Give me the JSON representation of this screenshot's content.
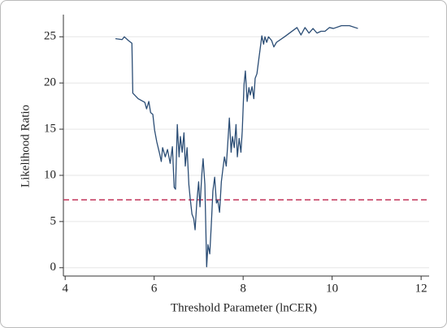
{
  "chart_data": {
    "type": "line",
    "xlabel": "Threshold Parameter (lnCER)",
    "ylabel": "Likelihood Ratio",
    "x": [
      5.13,
      5.28,
      5.33,
      5.42,
      5.5,
      5.52,
      5.64,
      5.79,
      5.83,
      5.88,
      5.92,
      5.97,
      6.01,
      6.06,
      6.12,
      6.16,
      6.19,
      6.25,
      6.3,
      6.36,
      6.41,
      6.45,
      6.48,
      6.52,
      6.56,
      6.59,
      6.63,
      6.67,
      6.7,
      6.74,
      6.78,
      6.81,
      6.85,
      6.89,
      6.92,
      6.96,
      7.0,
      7.03,
      7.07,
      7.1,
      7.14,
      7.18,
      7.21,
      7.25,
      7.29,
      7.32,
      7.36,
      7.4,
      7.43,
      7.47,
      7.51,
      7.54,
      7.58,
      7.62,
      7.65,
      7.69,
      7.73,
      7.76,
      7.8,
      7.84,
      7.87,
      7.91,
      7.95,
      7.98,
      8.02,
      8.05,
      8.09,
      8.13,
      8.16,
      8.2,
      8.24,
      8.27,
      8.31,
      8.35,
      8.38,
      8.42,
      8.46,
      8.49,
      8.53,
      8.57,
      8.64,
      8.69,
      8.75,
      8.93,
      9.21,
      9.3,
      9.39,
      9.48,
      9.57,
      9.66,
      9.75,
      9.84,
      9.94,
      10.03,
      10.21,
      10.39,
      10.58
    ],
    "series": [
      {
        "name": "Likelihood Ratio",
        "color": "#2b4d75",
        "values": [
          24.8,
          24.7,
          25.0,
          24.6,
          24.3,
          18.9,
          18.3,
          17.9,
          17.2,
          18.0,
          16.8,
          16.6,
          14.9,
          13.6,
          12.4,
          11.5,
          13.0,
          12.0,
          12.8,
          11.3,
          13.1,
          8.7,
          8.5,
          15.5,
          12.0,
          14.2,
          12.5,
          14.6,
          11.0,
          13.0,
          9.0,
          7.5,
          5.8,
          5.3,
          4.1,
          7.2,
          9.3,
          6.6,
          10.0,
          11.8,
          9.0,
          0.1,
          2.5,
          1.5,
          5.2,
          8.3,
          9.8,
          7.0,
          7.3,
          6.0,
          9.3,
          10.5,
          12.0,
          11.0,
          13.1,
          16.2,
          12.5,
          14.2,
          13.0,
          15.5,
          12.0,
          14.0,
          12.5,
          14.8,
          19.8,
          21.3,
          18.0,
          19.5,
          18.7,
          19.6,
          18.3,
          20.5,
          21.0,
          22.5,
          23.6,
          25.1,
          24.2,
          25.0,
          24.4,
          25.0,
          24.6,
          23.9,
          24.4,
          25.0,
          26.0,
          25.2,
          26.0,
          25.4,
          25.9,
          25.4,
          25.6,
          25.6,
          26.0,
          25.9,
          26.2,
          26.2,
          25.9
        ]
      }
    ],
    "hline": {
      "value": 7.35,
      "color": "#c2345a"
    },
    "xlim": [
      3.96,
      12.18
    ],
    "ylim": [
      -0.9,
      27.4
    ],
    "xticks": [
      4,
      6,
      8,
      10,
      12
    ],
    "yticks": [
      0,
      5,
      10,
      15,
      20,
      25
    ],
    "grid": true
  }
}
